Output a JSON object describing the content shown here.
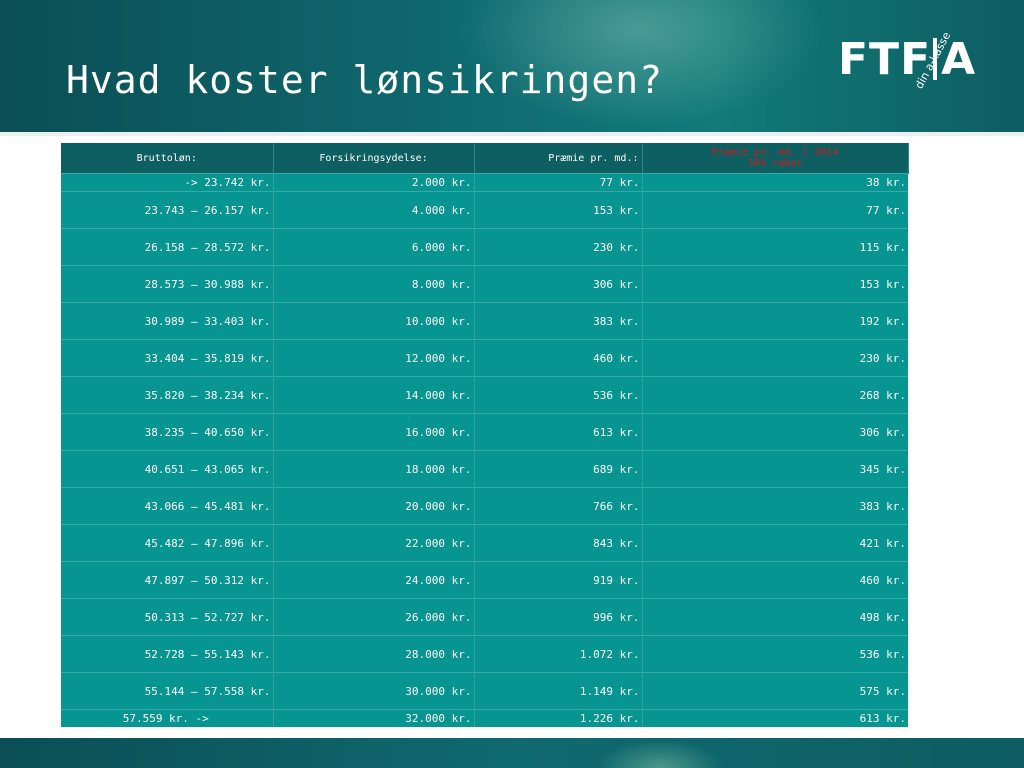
{
  "slide": {
    "title": "Hvad koster lønsikringen?",
    "logo_text": "FTF",
    "logo_letter": "A",
    "logo_tagline": "din a-kasse"
  },
  "table": {
    "headers": [
      "Bruttoløn:",
      "Forsikringsydelse:",
      "Præmie pr. md.:"
    ],
    "header_red_line1": "Præmie pr. md. i 2014",
    "header_red_line2": "50% rabat",
    "rows": [
      [
        "-> 23.742 kr.",
        "2.000 kr.",
        "77 kr.",
        "38 kr."
      ],
      [
        "23.743 – 26.157 kr.",
        "4.000 kr.",
        "153 kr.",
        "77 kr."
      ],
      [
        "26.158 – 28.572 kr.",
        "6.000 kr.",
        "230 kr.",
        "115 kr."
      ],
      [
        "28.573 – 30.988 kr.",
        "8.000 kr.",
        "306 kr.",
        "153 kr."
      ],
      [
        "30.989 – 33.403 kr.",
        "10.000 kr.",
        "383 kr.",
        "192 kr."
      ],
      [
        "33.404 – 35.819 kr.",
        "12.000 kr.",
        "460 kr.",
        "230 kr."
      ],
      [
        "35.820 – 38.234 kr.",
        "14.000 kr.",
        "536 kr.",
        "268 kr."
      ],
      [
        "38.235 – 40.650 kr.",
        "16.000 kr.",
        "613 kr.",
        "306 kr."
      ],
      [
        "40.651 – 43.065 kr.",
        "18.000 kr.",
        "689 kr.",
        "345 kr."
      ],
      [
        "43.066 – 45.481 kr.",
        "20.000 kr.",
        "766 kr.",
        "383 kr."
      ],
      [
        "45.482 – 47.896 kr.",
        "22.000 kr.",
        "843 kr.",
        "421 kr."
      ],
      [
        "47.897 – 50.312 kr.",
        "24.000 kr.",
        "919 kr.",
        "460 kr."
      ],
      [
        "50.313 – 52.727 kr.",
        "26.000 kr.",
        "996 kr.",
        "498 kr."
      ],
      [
        "52.728 – 55.143 kr.",
        "28.000 kr.",
        "1.072 kr.",
        "536 kr."
      ],
      [
        "55.144 – 57.558 kr.",
        "30.000 kr.",
        "1.149 kr.",
        "575 kr."
      ],
      [
        "57.559 kr. ->",
        "32.000 kr.",
        "1.226 kr.",
        "613 kr."
      ]
    ]
  },
  "colors": {
    "table_bg": "#069590",
    "header_bg": "#0e5f62",
    "header_highlight": "#d11a1a",
    "slide_band": "#0f6a70"
  }
}
